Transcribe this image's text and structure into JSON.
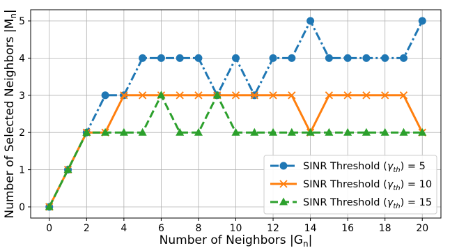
{
  "chart_data": {
    "type": "line",
    "xlabel": "Number of Neighbors |G",
    "xlabel_sub": "n",
    "xlabel_end": "|",
    "ylabel": "Number of Selected Neighbors |M",
    "ylabel_sub": "n",
    "ylabel_end": "|",
    "xlim": [
      -1,
      21
    ],
    "ylim": [
      -0.3,
      5.3
    ],
    "xticks": [
      0,
      2,
      4,
      6,
      8,
      10,
      12,
      14,
      16,
      18,
      20
    ],
    "yticks": [
      0,
      1,
      2,
      3,
      4,
      5
    ],
    "grid": true,
    "legend_position": "lower-right",
    "x": [
      0,
      1,
      2,
      3,
      4,
      5,
      6,
      7,
      8,
      9,
      10,
      11,
      12,
      13,
      14,
      15,
      16,
      17,
      18,
      19,
      20
    ],
    "series": [
      {
        "name": "SINR Threshold (γ_th) = 5",
        "legend_prefix": "SINR Threshold (",
        "legend_gamma": "γ",
        "legend_sub": "th",
        "legend_suffix": ") = 5",
        "color": "#1f77b4",
        "dash": "dashdot",
        "marker": "circle",
        "values": [
          0,
          1,
          2,
          3,
          3,
          4,
          4,
          4,
          4,
          3,
          4,
          3,
          4,
          4,
          5,
          4,
          4,
          4,
          4,
          4,
          5
        ]
      },
      {
        "name": "SINR Threshold (γ_th) = 10",
        "legend_prefix": "SINR Threshold (",
        "legend_gamma": "γ",
        "legend_sub": "th",
        "legend_suffix": ") = 10",
        "color": "#ff7f0e",
        "dash": "solid",
        "marker": "x",
        "values": [
          0,
          1,
          2,
          2,
          3,
          3,
          3,
          3,
          3,
          3,
          3,
          3,
          3,
          3,
          2,
          3,
          3,
          3,
          3,
          3,
          2
        ]
      },
      {
        "name": "SINR Threshold (γ_th) = 15",
        "legend_prefix": "SINR Threshold (",
        "legend_gamma": "γ",
        "legend_sub": "th",
        "legend_suffix": ") = 15",
        "color": "#2ca02c",
        "dash": "dashed",
        "marker": "triangle",
        "values": [
          0,
          1,
          2,
          2,
          2,
          2,
          3,
          2,
          2,
          3,
          2,
          2,
          2,
          2,
          2,
          2,
          2,
          2,
          2,
          2,
          2
        ]
      }
    ]
  }
}
